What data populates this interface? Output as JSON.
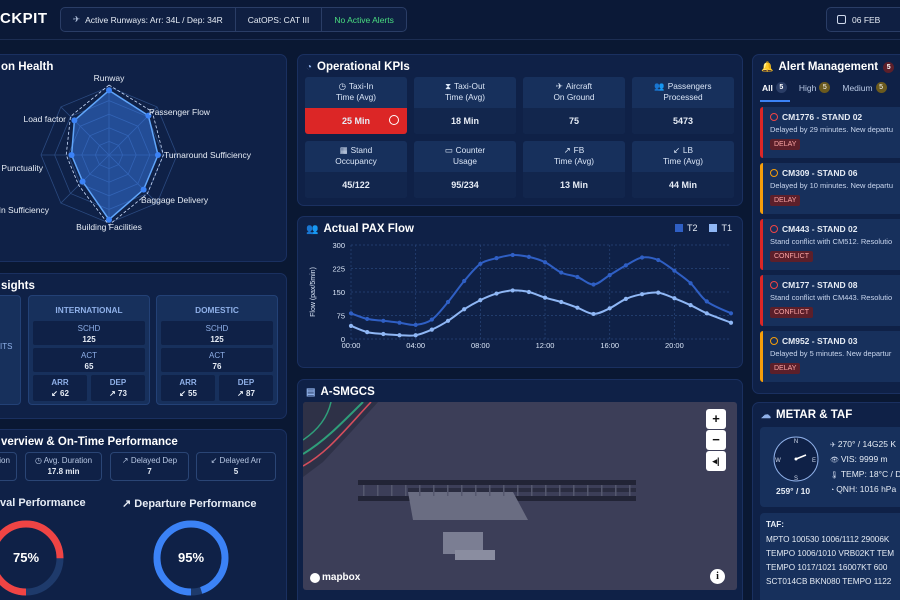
{
  "header": {
    "brand": "CKPIT",
    "runways": "Active Runways: Arr: 34L / Dep: 34R",
    "catops": "CatOPS: CAT III",
    "alerts": "No Active Alerts",
    "date": "06 FEB"
  },
  "health": {
    "title": "on Health",
    "axes": [
      "Runway",
      "Passenger Flow",
      "Turnaround Sufficiency",
      "Baggage Delivery",
      "Building Facilities",
      "-In Sufficiency",
      "Punctuality",
      "Load factor"
    ],
    "values": [
      0.95,
      0.82,
      0.72,
      0.72,
      0.95,
      0.55,
      0.55,
      0.72
    ],
    "color": "#60a5fa"
  },
  "kpis": {
    "title": "Operational KPIs",
    "items": [
      {
        "icon": "clock-icon",
        "label1": "Taxi-In",
        "label2": "Time (Avg)",
        "value": "25 Min",
        "alert": true
      },
      {
        "icon": "hourglass-icon",
        "label1": "Taxi-Out",
        "label2": "Time (Avg)",
        "value": "18 Min",
        "alert": false
      },
      {
        "icon": "plane-icon",
        "label1": "Aircraft",
        "label2": "On Ground",
        "value": "75",
        "alert": false
      },
      {
        "icon": "people-icon",
        "label1": "Passengers",
        "label2": "Processed",
        "value": "5473",
        "alert": false
      },
      {
        "icon": "grid-icon",
        "label1": "Stand",
        "label2": "Occupancy",
        "value": "45/122",
        "alert": false
      },
      {
        "icon": "counter-icon",
        "label1": "Counter",
        "label2": "Usage",
        "value": "95/234",
        "alert": false
      },
      {
        "icon": "arrow-up-right-icon",
        "label1": "FB",
        "label2": "Time (Avg)",
        "value": "13 Min",
        "alert": false
      },
      {
        "icon": "arrow-down-left-icon",
        "label1": "LB",
        "label2": "Time (Avg)",
        "value": "44 Min",
        "alert": false
      }
    ]
  },
  "pax": {
    "title": "Actual PAX Flow",
    "legend": [
      "T2",
      "T1"
    ]
  },
  "chart_data": {
    "type": "line",
    "title": "Actual PAX Flow",
    "xlabel": "",
    "ylabel": "Flow (pax/5min)",
    "x_ticks": [
      "00:00",
      "04:00",
      "08:00",
      "12:00",
      "16:00",
      "20:00"
    ],
    "yticks": [
      0,
      75,
      150,
      225,
      300
    ],
    "ylim": [
      0,
      300
    ],
    "xlim": [
      0,
      23.5
    ],
    "grid": true,
    "series": [
      {
        "name": "T2",
        "color": "#2f5fc4",
        "x": [
          0,
          1,
          2,
          3,
          4,
          5,
          6,
          7,
          8,
          9,
          10,
          11,
          12,
          13,
          14,
          15,
          16,
          17,
          18,
          19,
          20,
          21,
          22,
          23.5
        ],
        "y": [
          82,
          64,
          58,
          52,
          45,
          62,
          118,
          185,
          240,
          258,
          268,
          262,
          245,
          212,
          198,
          174,
          204,
          235,
          260,
          252,
          218,
          178,
          120,
          82
        ]
      },
      {
        "name": "T1",
        "color": "#8fb7f5",
        "x": [
          0,
          1,
          2,
          3,
          4,
          5,
          6,
          7,
          8,
          9,
          10,
          11,
          12,
          13,
          14,
          15,
          16,
          17,
          18,
          19,
          20,
          21,
          22,
          23.5
        ],
        "y": [
          42,
          22,
          16,
          12,
          12,
          30,
          58,
          95,
          124,
          145,
          155,
          150,
          132,
          118,
          100,
          80,
          98,
          128,
          143,
          148,
          130,
          108,
          82,
          52
        ]
      }
    ]
  },
  "insights": {
    "title": "sights",
    "left_label": "ITS",
    "international": {
      "label": "INTERNATIONAL",
      "schd_label": "SCHD",
      "schd": "125",
      "act_label": "ACT",
      "act": "65",
      "arr_label": "ARR",
      "arr": "62",
      "dep_label": "DEP",
      "dep": "73"
    },
    "domestic": {
      "label": "DOMESTIC",
      "schd_label": "SCHD",
      "schd": "125",
      "act_label": "ACT",
      "act": "76",
      "arr_label": "ARR",
      "arr": "55",
      "dep_label": "DEP",
      "dep": "87"
    }
  },
  "overview": {
    "title": "verview & On-Time Performance",
    "stats": [
      {
        "label": "tion",
        "value": ""
      },
      {
        "label": "Avg. Duration",
        "value": "17.8 min"
      },
      {
        "label": "Delayed Dep",
        "value": "7"
      },
      {
        "label": "Delayed Arr",
        "value": "5"
      }
    ],
    "arrival_title": "val Performance",
    "departure_title": "Departure Performance",
    "arrival_pct": 75,
    "departure_pct": 95,
    "arrival_label": "75%",
    "departure_label": "95%",
    "arrival_color": "#ef4444",
    "departure_color": "#3b82f6"
  },
  "asmgcs": {
    "title": "A-SMGCS",
    "zoom_in": "+",
    "zoom_out": "−",
    "attribution": "mapbox"
  },
  "alerts": {
    "title": "Alert Management",
    "count": "5",
    "tabs": [
      {
        "label": "All",
        "count": "5"
      },
      {
        "label": "High",
        "count": "5"
      },
      {
        "label": "Medium",
        "count": "5"
      }
    ],
    "items": [
      {
        "title": "CM1776 - STAND 02",
        "desc": "Delayed by 29 minutes. New departu",
        "tag": "DELAY",
        "level": "red"
      },
      {
        "title": "CM309 - STAND 06",
        "desc": "Delayed by 10 minutes. New departu",
        "tag": "DELAY",
        "level": "yel"
      },
      {
        "title": "CM443 - STAND 02",
        "desc": "Stand conflict with CM512. Resolutio",
        "tag": "CONFLICT",
        "level": "red"
      },
      {
        "title": "CM177 - STAND 08",
        "desc": "Stand conflict with CM443. Resolutio",
        "tag": "CONFLICT",
        "level": "red"
      },
      {
        "title": "CM952 - STAND 03",
        "desc": "Delayed by 5 minutes. New departur",
        "tag": "DELAY",
        "level": "yel"
      }
    ]
  },
  "metar": {
    "title": "METAR & TAF",
    "wind_dir": "259° / 10",
    "wind": "270° / 14G25 K",
    "vis": "VIS: 9999 m",
    "temp": "TEMP: 18°C / D",
    "qnh": "QNH: 1016 hPa",
    "taf_label": "TAF:",
    "taf_lines": [
      "MPTO 100530 1006/1112 29006K",
      "TEMPO 1006/1010 VRB02KT TEM",
      "TEMPO 1017/1021 16007KT 600",
      "SCT014CB BKN080 TEMPO 1122"
    ]
  }
}
